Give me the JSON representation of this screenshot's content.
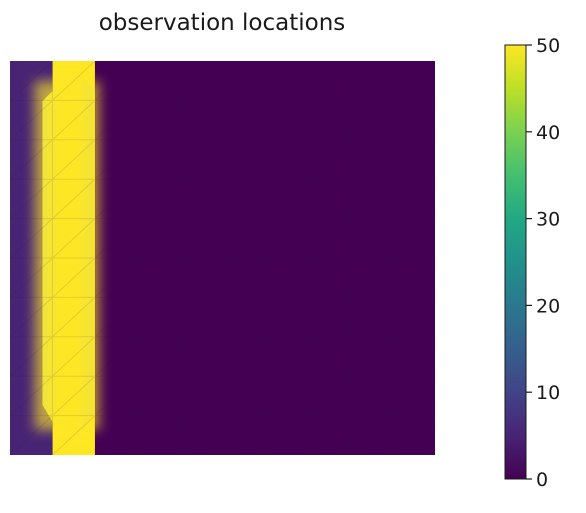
{
  "chart_data": {
    "type": "heatmap",
    "title": "observation locations",
    "colormap": "viridis",
    "value_range": [
      0,
      50
    ],
    "colorbar": {
      "ticks": [
        0,
        10,
        20,
        30,
        40,
        50
      ],
      "tick_labels": [
        "0",
        "10",
        "20",
        "30",
        "40",
        "50"
      ]
    },
    "grid_columns": 10,
    "grid_rows": 10,
    "column_profile": [
      5,
      50,
      0,
      0,
      0,
      0,
      0,
      0,
      0,
      0
    ],
    "observation_column_index": 1,
    "observation_value": 50,
    "background_value": 0,
    "axes_ticks_visible": false
  }
}
